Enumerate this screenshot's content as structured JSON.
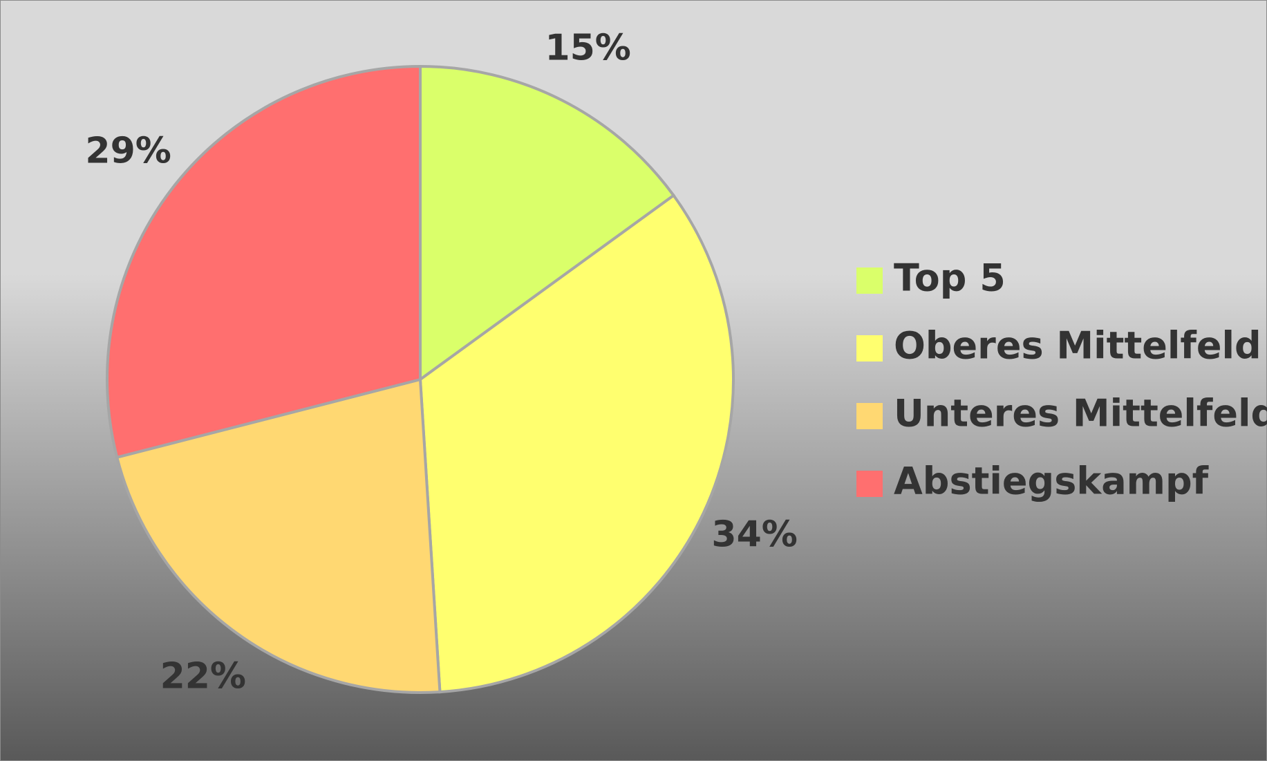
{
  "chart_data": {
    "type": "pie",
    "categories": [
      "Top 5",
      "Oberes Mittelfeld",
      "Unteres Mittelfeld",
      "Abstiegskampf"
    ],
    "values": [
      15,
      34,
      22,
      29
    ],
    "value_labels": [
      "15%",
      "34%",
      "22%",
      "29%"
    ],
    "colors": [
      "#daff6a",
      "#ffff6f",
      "#ffd872",
      "#ff6f6f"
    ],
    "legend": "right"
  }
}
